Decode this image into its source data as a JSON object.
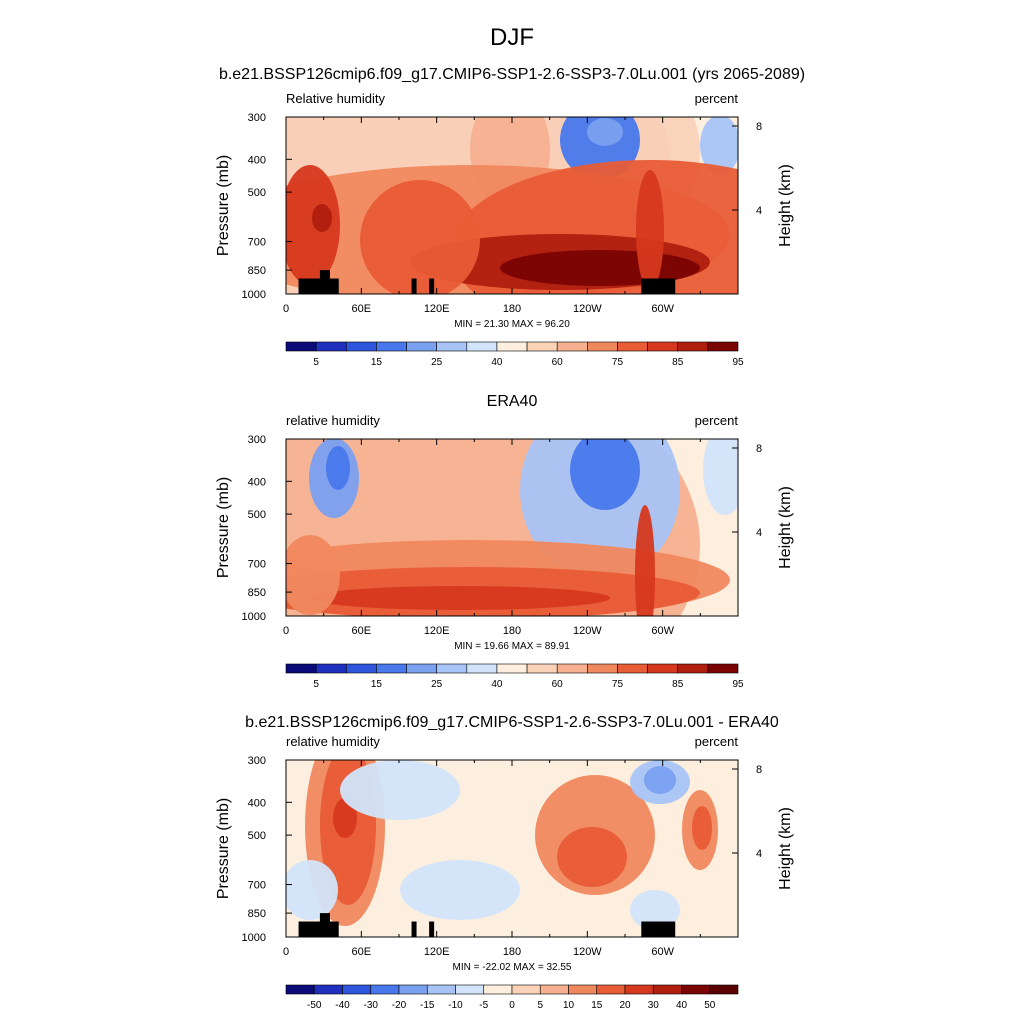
{
  "page": {
    "title": "DJF",
    "subtitle": "b.e21.BSSP126cmip6.f09_g17.CMIP6-SSP1-2.6-SSP3-7.0Lu.001 (yrs 2065-2089)"
  },
  "chart_data": [
    {
      "type": "heatmap",
      "title": "",
      "left_label": "Relative humidity",
      "right_label": "percent",
      "ylabel": "Pressure (mb)",
      "y2label": "Height (km)",
      "xticks": [
        "0",
        "60E",
        "120E",
        "180",
        "120W",
        "60W"
      ],
      "xtick_lon": [
        0,
        60,
        120,
        180,
        240,
        300
      ],
      "xlim": [
        0,
        360
      ],
      "yticks": [
        "300",
        "400",
        "500",
        "700",
        "850",
        "1000"
      ],
      "ytick_p": [
        300,
        400,
        500,
        700,
        850,
        1000
      ],
      "y2ticks": [
        "8",
        "4"
      ],
      "y2tick_km": [
        8,
        4
      ],
      "stats": "MIN =  21.30  MAX =  96.20",
      "colorbar_labels": [
        "5",
        "15",
        "25",
        "40",
        "60",
        "75",
        "85",
        "95"
      ],
      "colors": [
        "#0a0a78",
        "#1f2fbe",
        "#2f55dc",
        "#4878ec",
        "#7aa0f0",
        "#a8c4f6",
        "#d2e4fa",
        "#fdeede",
        "#f9d2b8",
        "#f6b090",
        "#f0885e",
        "#e85c36",
        "#d6381e",
        "#b01e0e",
        "#7a0404"
      ],
      "terrain": true
    },
    {
      "type": "heatmap",
      "title": "ERA40",
      "left_label": "relative humidity",
      "right_label": "percent",
      "ylabel": "Pressure (mb)",
      "y2label": "Height (km)",
      "xticks": [
        "0",
        "60E",
        "120E",
        "180",
        "120W",
        "60W"
      ],
      "xtick_lon": [
        0,
        60,
        120,
        180,
        240,
        300
      ],
      "xlim": [
        0,
        360
      ],
      "yticks": [
        "300",
        "400",
        "500",
        "700",
        "850",
        "1000"
      ],
      "ytick_p": [
        300,
        400,
        500,
        700,
        850,
        1000
      ],
      "y2ticks": [
        "8",
        "4"
      ],
      "y2tick_km": [
        8,
        4
      ],
      "stats": "MIN =  19.66  MAX =  89.91",
      "colorbar_labels": [
        "5",
        "15",
        "25",
        "40",
        "60",
        "75",
        "85",
        "95"
      ],
      "colors": [
        "#0a0a78",
        "#1f2fbe",
        "#2f55dc",
        "#4878ec",
        "#7aa0f0",
        "#a8c4f6",
        "#d2e4fa",
        "#fdeede",
        "#f9d2b8",
        "#f6b090",
        "#f0885e",
        "#e85c36",
        "#d6381e",
        "#b01e0e",
        "#7a0404"
      ],
      "terrain": false
    },
    {
      "type": "heatmap",
      "title": "b.e21.BSSP126cmip6.f09_g17.CMIP6-SSP1-2.6-SSP3-7.0Lu.001 - ERA40",
      "left_label": "relative humidity",
      "right_label": "percent",
      "ylabel": "Pressure (mb)",
      "y2label": "Height (km)",
      "xticks": [
        "0",
        "60E",
        "120E",
        "180",
        "120W",
        "60W"
      ],
      "xtick_lon": [
        0,
        60,
        120,
        180,
        240,
        300
      ],
      "xlim": [
        0,
        360
      ],
      "yticks": [
        "300",
        "400",
        "500",
        "700",
        "850",
        "1000"
      ],
      "ytick_p": [
        300,
        400,
        500,
        700,
        850,
        1000
      ],
      "y2ticks": [
        "8",
        "4"
      ],
      "y2tick_km": [
        8,
        4
      ],
      "stats": "MIN = -22.02  MAX =  32.55",
      "colorbar_labels": [
        "-50",
        "-40",
        "-30",
        "-20",
        "-15",
        "-10",
        "-5",
        "0",
        "5",
        "10",
        "15",
        "20",
        "30",
        "40",
        "50"
      ],
      "colors": [
        "#0a0a78",
        "#1f2fbe",
        "#2f55dc",
        "#4878ec",
        "#7aa0f0",
        "#a8c4f6",
        "#d2e4fa",
        "#fdeede",
        "#f9d2b8",
        "#f6b090",
        "#f0885e",
        "#e85c36",
        "#d6381e",
        "#b01e0e",
        "#7a0404",
        "#5a0000"
      ],
      "terrain": true
    }
  ]
}
